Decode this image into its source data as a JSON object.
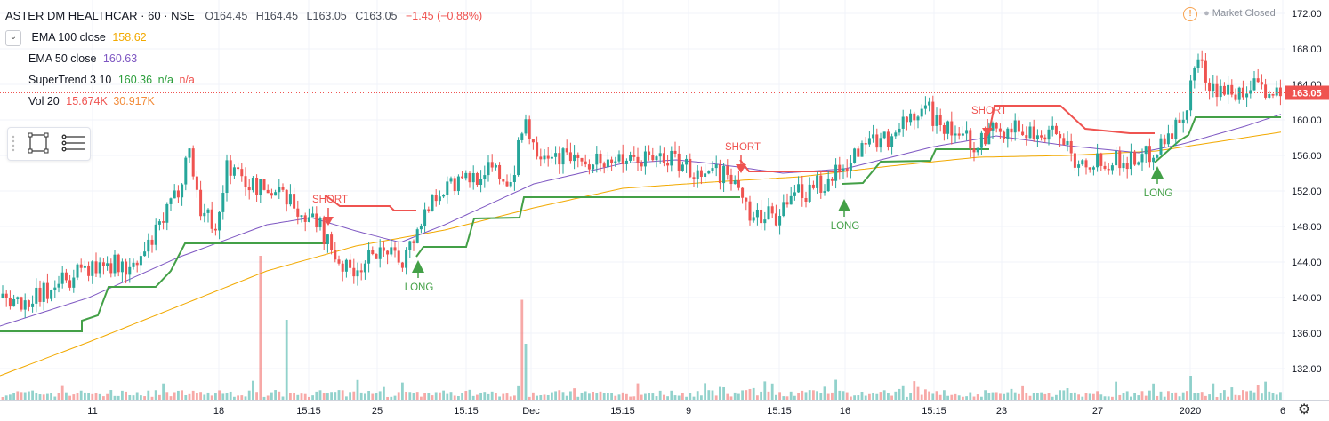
{
  "header": {
    "symbol": "ASTER DM HEALTHCAR · 60 · NSE",
    "o": "O164.45",
    "h": "H164.45",
    "l": "L163.05",
    "c": "C163.05",
    "change": "−1.45 (−0.88%)"
  },
  "indicators": [
    {
      "label": "EMA 100 close",
      "value": "158.62",
      "color": "#f2a900"
    },
    {
      "label": "EMA 50 close",
      "value": "160.63",
      "color": "#7e57c2"
    },
    {
      "label": "SuperTrend 3 10",
      "value": "160.36",
      "extra1": "n/a",
      "extra2": "n/a",
      "color": "#2a9d3a",
      "extra_color": "#ef5350"
    },
    {
      "label": "Vol 20",
      "value": "15.674K",
      "value2": "30.917K",
      "color": "#ef5350",
      "color2": "#f28c3a"
    }
  ],
  "market_status": "Market Closed",
  "last_price_label": "163.05",
  "colors": {
    "up": "#26a69a",
    "down": "#ef5350",
    "candle_up": "#26a69a",
    "ema100": "#f2a900",
    "ema50": "#7e57c2",
    "st_up": "#43a047",
    "st_down": "#ef5350",
    "price_line": "#ef5350"
  },
  "icons": [
    "chevron-down-icon",
    "rectangle-tool-icon",
    "lines-tool-icon",
    "warning-icon",
    "gear-icon"
  ],
  "chart_data": {
    "type": "candlestick",
    "y_axis": {
      "ticks": [
        132,
        136,
        140,
        144,
        148,
        152,
        156,
        160,
        164,
        168,
        172
      ],
      "range": [
        128.5,
        173.5
      ]
    },
    "x_axis": {
      "ticks": [
        "11",
        "18",
        "15:15",
        "25",
        "15:15",
        "Dec",
        "15:15",
        "9",
        "15:15",
        "16",
        "15:15",
        "23",
        "27",
        "2020",
        "6"
      ]
    },
    "signals": [
      {
        "label": "SHORT",
        "price": 148.5
      },
      {
        "label": "LONG",
        "price": 144.2
      },
      {
        "label": "SHORT",
        "price": 154.4
      },
      {
        "label": "LONG",
        "price": 151.1
      },
      {
        "label": "SHORT",
        "price": 158.5
      },
      {
        "label": "LONG",
        "price": 154.8
      }
    ],
    "price_anchors": [
      [
        0,
        140
      ],
      [
        30,
        139.5
      ],
      [
        60,
        141
      ],
      [
        90,
        143
      ],
      [
        120,
        144
      ],
      [
        150,
        143
      ],
      [
        175,
        147
      ],
      [
        200,
        152
      ],
      [
        212,
        157
      ],
      [
        225,
        150
      ],
      [
        245,
        148
      ],
      [
        255,
        155
      ],
      [
        275,
        153
      ],
      [
        300,
        152
      ],
      [
        320,
        151
      ],
      [
        345,
        149
      ],
      [
        360,
        148
      ],
      [
        375,
        145
      ],
      [
        390,
        143
      ],
      [
        420,
        144.5
      ],
      [
        455,
        144.5
      ],
      [
        470,
        148
      ],
      [
        490,
        152
      ],
      [
        520,
        153
      ],
      [
        550,
        154.5
      ],
      [
        575,
        153
      ],
      [
        590,
        160
      ],
      [
        600,
        157
      ],
      [
        630,
        156
      ],
      [
        665,
        155.5
      ],
      [
        700,
        155
      ],
      [
        740,
        156
      ],
      [
        770,
        155
      ],
      [
        790,
        153
      ],
      [
        815,
        154
      ],
      [
        830,
        152.5
      ],
      [
        840,
        150
      ],
      [
        860,
        149
      ],
      [
        880,
        149.5
      ],
      [
        900,
        152
      ],
      [
        930,
        153
      ],
      [
        950,
        155
      ],
      [
        985,
        158
      ],
      [
        1000,
        158
      ],
      [
        1020,
        160
      ],
      [
        1050,
        160.5
      ],
      [
        1080,
        158
      ],
      [
        1105,
        157.5
      ],
      [
        1120,
        159
      ],
      [
        1150,
        159
      ],
      [
        1180,
        158
      ],
      [
        1210,
        155.5
      ],
      [
        1240,
        155.5
      ],
      [
        1270,
        155.5
      ],
      [
        1290,
        156
      ],
      [
        1310,
        158
      ],
      [
        1330,
        160
      ],
      [
        1345,
        167
      ],
      [
        1360,
        164
      ],
      [
        1385,
        163
      ],
      [
        1410,
        163.5
      ],
      [
        1440,
        163.5
      ]
    ],
    "ema100_anchors": [
      [
        0,
        131.2
      ],
      [
        100,
        135
      ],
      [
        200,
        139
      ],
      [
        300,
        143
      ],
      [
        400,
        145.8
      ],
      [
        500,
        147.6
      ],
      [
        600,
        150.1
      ],
      [
        700,
        152.3
      ],
      [
        800,
        153
      ],
      [
        900,
        153.6
      ],
      [
        1000,
        154.8
      ],
      [
        1100,
        155.8
      ],
      [
        1200,
        156
      ],
      [
        1300,
        156.5
      ],
      [
        1440,
        158.62
      ]
    ],
    "ema50_anchors": [
      [
        0,
        136.8
      ],
      [
        100,
        140
      ],
      [
        200,
        144.5
      ],
      [
        300,
        148.2
      ],
      [
        350,
        149
      ],
      [
        400,
        147.5
      ],
      [
        450,
        146.2
      ],
      [
        500,
        148.2
      ],
      [
        600,
        152.8
      ],
      [
        700,
        155.1
      ],
      [
        760,
        155.5
      ],
      [
        800,
        155.1
      ],
      [
        880,
        154
      ],
      [
        950,
        154.5
      ],
      [
        1050,
        157
      ],
      [
        1120,
        158.2
      ],
      [
        1200,
        157.1
      ],
      [
        1280,
        156.3
      ],
      [
        1330,
        157.3
      ],
      [
        1400,
        159.3
      ],
      [
        1440,
        160.63
      ]
    ],
    "supertrend_segments": [
      {
        "color": "st_up",
        "points": [
          [
            0,
            136.2
          ],
          [
            92,
            136.2
          ],
          [
            92,
            137.4
          ],
          [
            110,
            138
          ],
          [
            122,
            141.2
          ],
          [
            175,
            141.2
          ],
          [
            192,
            143
          ],
          [
            208,
            146.1
          ],
          [
            366,
            146.1
          ]
        ]
      },
      {
        "color": "st_down",
        "points": [
          [
            366,
            151.5
          ],
          [
            382,
            150.3
          ],
          [
            438,
            150.3
          ],
          [
            443,
            149.8
          ],
          [
            468,
            149.8
          ]
        ]
      },
      {
        "color": "st_up",
        "points": [
          [
            468,
            144.6
          ],
          [
            476,
            145.7
          ],
          [
            524,
            145.7
          ],
          [
            533,
            148.9
          ],
          [
            584,
            149
          ],
          [
            589,
            151.3
          ],
          [
            832,
            151.3
          ]
        ]
      },
      {
        "color": "st_down",
        "points": [
          [
            832,
            155.5
          ],
          [
            842,
            154.2
          ],
          [
            947,
            154.2
          ]
        ]
      },
      {
        "color": "st_up",
        "points": [
          [
            947,
            152.8
          ],
          [
            970,
            152.9
          ],
          [
            990,
            155.3
          ],
          [
            1046,
            155.4
          ],
          [
            1052,
            156.7
          ],
          [
            1112,
            156.7
          ]
        ]
      },
      {
        "color": "st_down",
        "points": [
          [
            1112,
            158.7
          ],
          [
            1118,
            161.6
          ],
          [
            1192,
            161.6
          ],
          [
            1220,
            159
          ],
          [
            1270,
            158.5
          ],
          [
            1298,
            158.5
          ]
        ]
      },
      {
        "color": "st_up",
        "points": [
          [
            1298,
            155.2
          ],
          [
            1315,
            156.7
          ],
          [
            1325,
            157.6
          ],
          [
            1336,
            158.3
          ],
          [
            1344,
            160.3
          ],
          [
            1440,
            160.3
          ]
        ]
      }
    ],
    "volume_spikes": [
      [
        291,
        0.36
      ],
      [
        321,
        0.2
      ],
      [
        587,
        0.25
      ],
      [
        590,
        0.14
      ],
      [
        1337,
        0.06
      ]
    ]
  }
}
